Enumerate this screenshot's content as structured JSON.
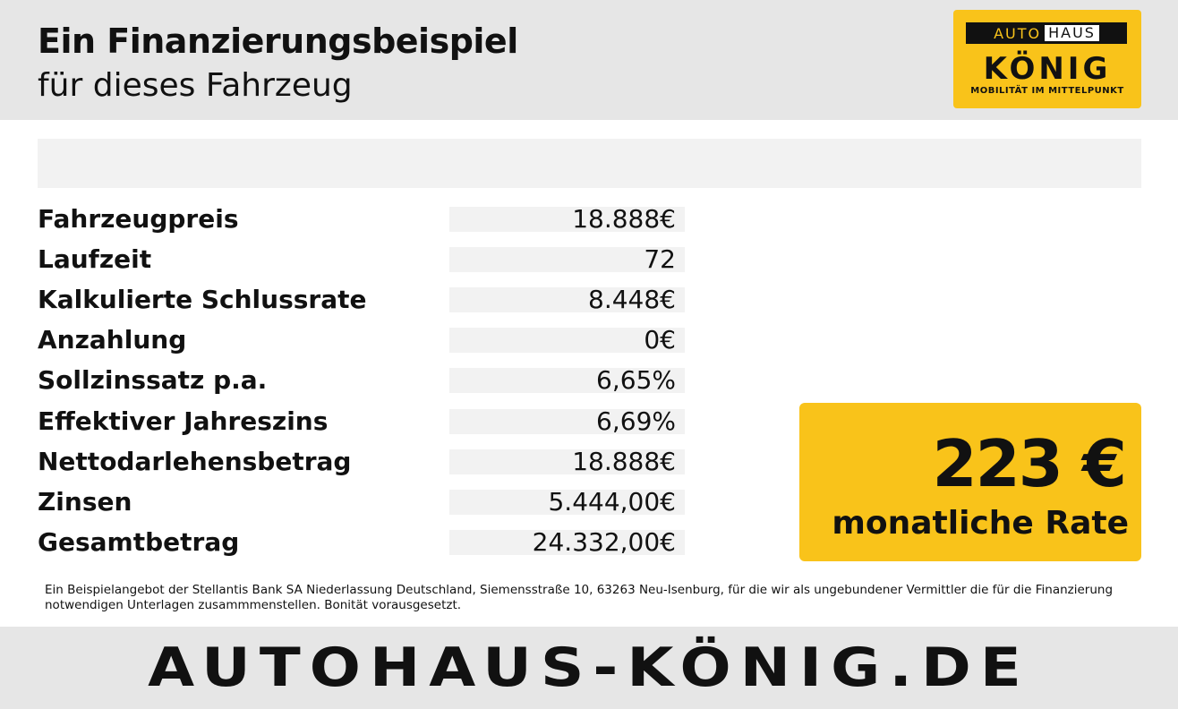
{
  "header": {
    "title": "Ein Finanzierungsbeispiel",
    "subtitle": "für dieses Fahrzeug"
  },
  "logo": {
    "top_left": "AUTO",
    "top_right": "HAUS",
    "name": "KÖNIG",
    "tagline": "MOBILITÄT IM MITTELPUNKT"
  },
  "table": {
    "rows": [
      [
        "Fahrzeugpreis",
        "18.888€"
      ],
      [
        "Laufzeit",
        "72"
      ],
      [
        "Kalkulierte Schlussrate",
        "8.448€"
      ],
      [
        "Anzahlung",
        "0€"
      ],
      [
        "Sollzinssatz p.a.",
        "6,65%"
      ],
      [
        "Effektiver Jahreszins",
        "6,69%"
      ],
      [
        "Nettodarlehensbetrag",
        "18.888€"
      ],
      [
        "Zinsen",
        "5.444,00€"
      ],
      [
        "Gesamtbetrag",
        "24.332,00€"
      ]
    ]
  },
  "rate": {
    "amount": "223 €",
    "label": "monatliche Rate"
  },
  "disclaimer": "Ein Beispielangebot der Stellantis Bank SA Niederlassung Deutschland, Siemensstraße 10, 63263 Neu-Isenburg, für die wir als ungebundener Vermittler die für die Finanzierung notwendigen Unterlagen zusammmenstellen. Bonität vorausgesetzt.",
  "footer": {
    "site": "AUTOHAUS-KÖNIG.DE"
  }
}
